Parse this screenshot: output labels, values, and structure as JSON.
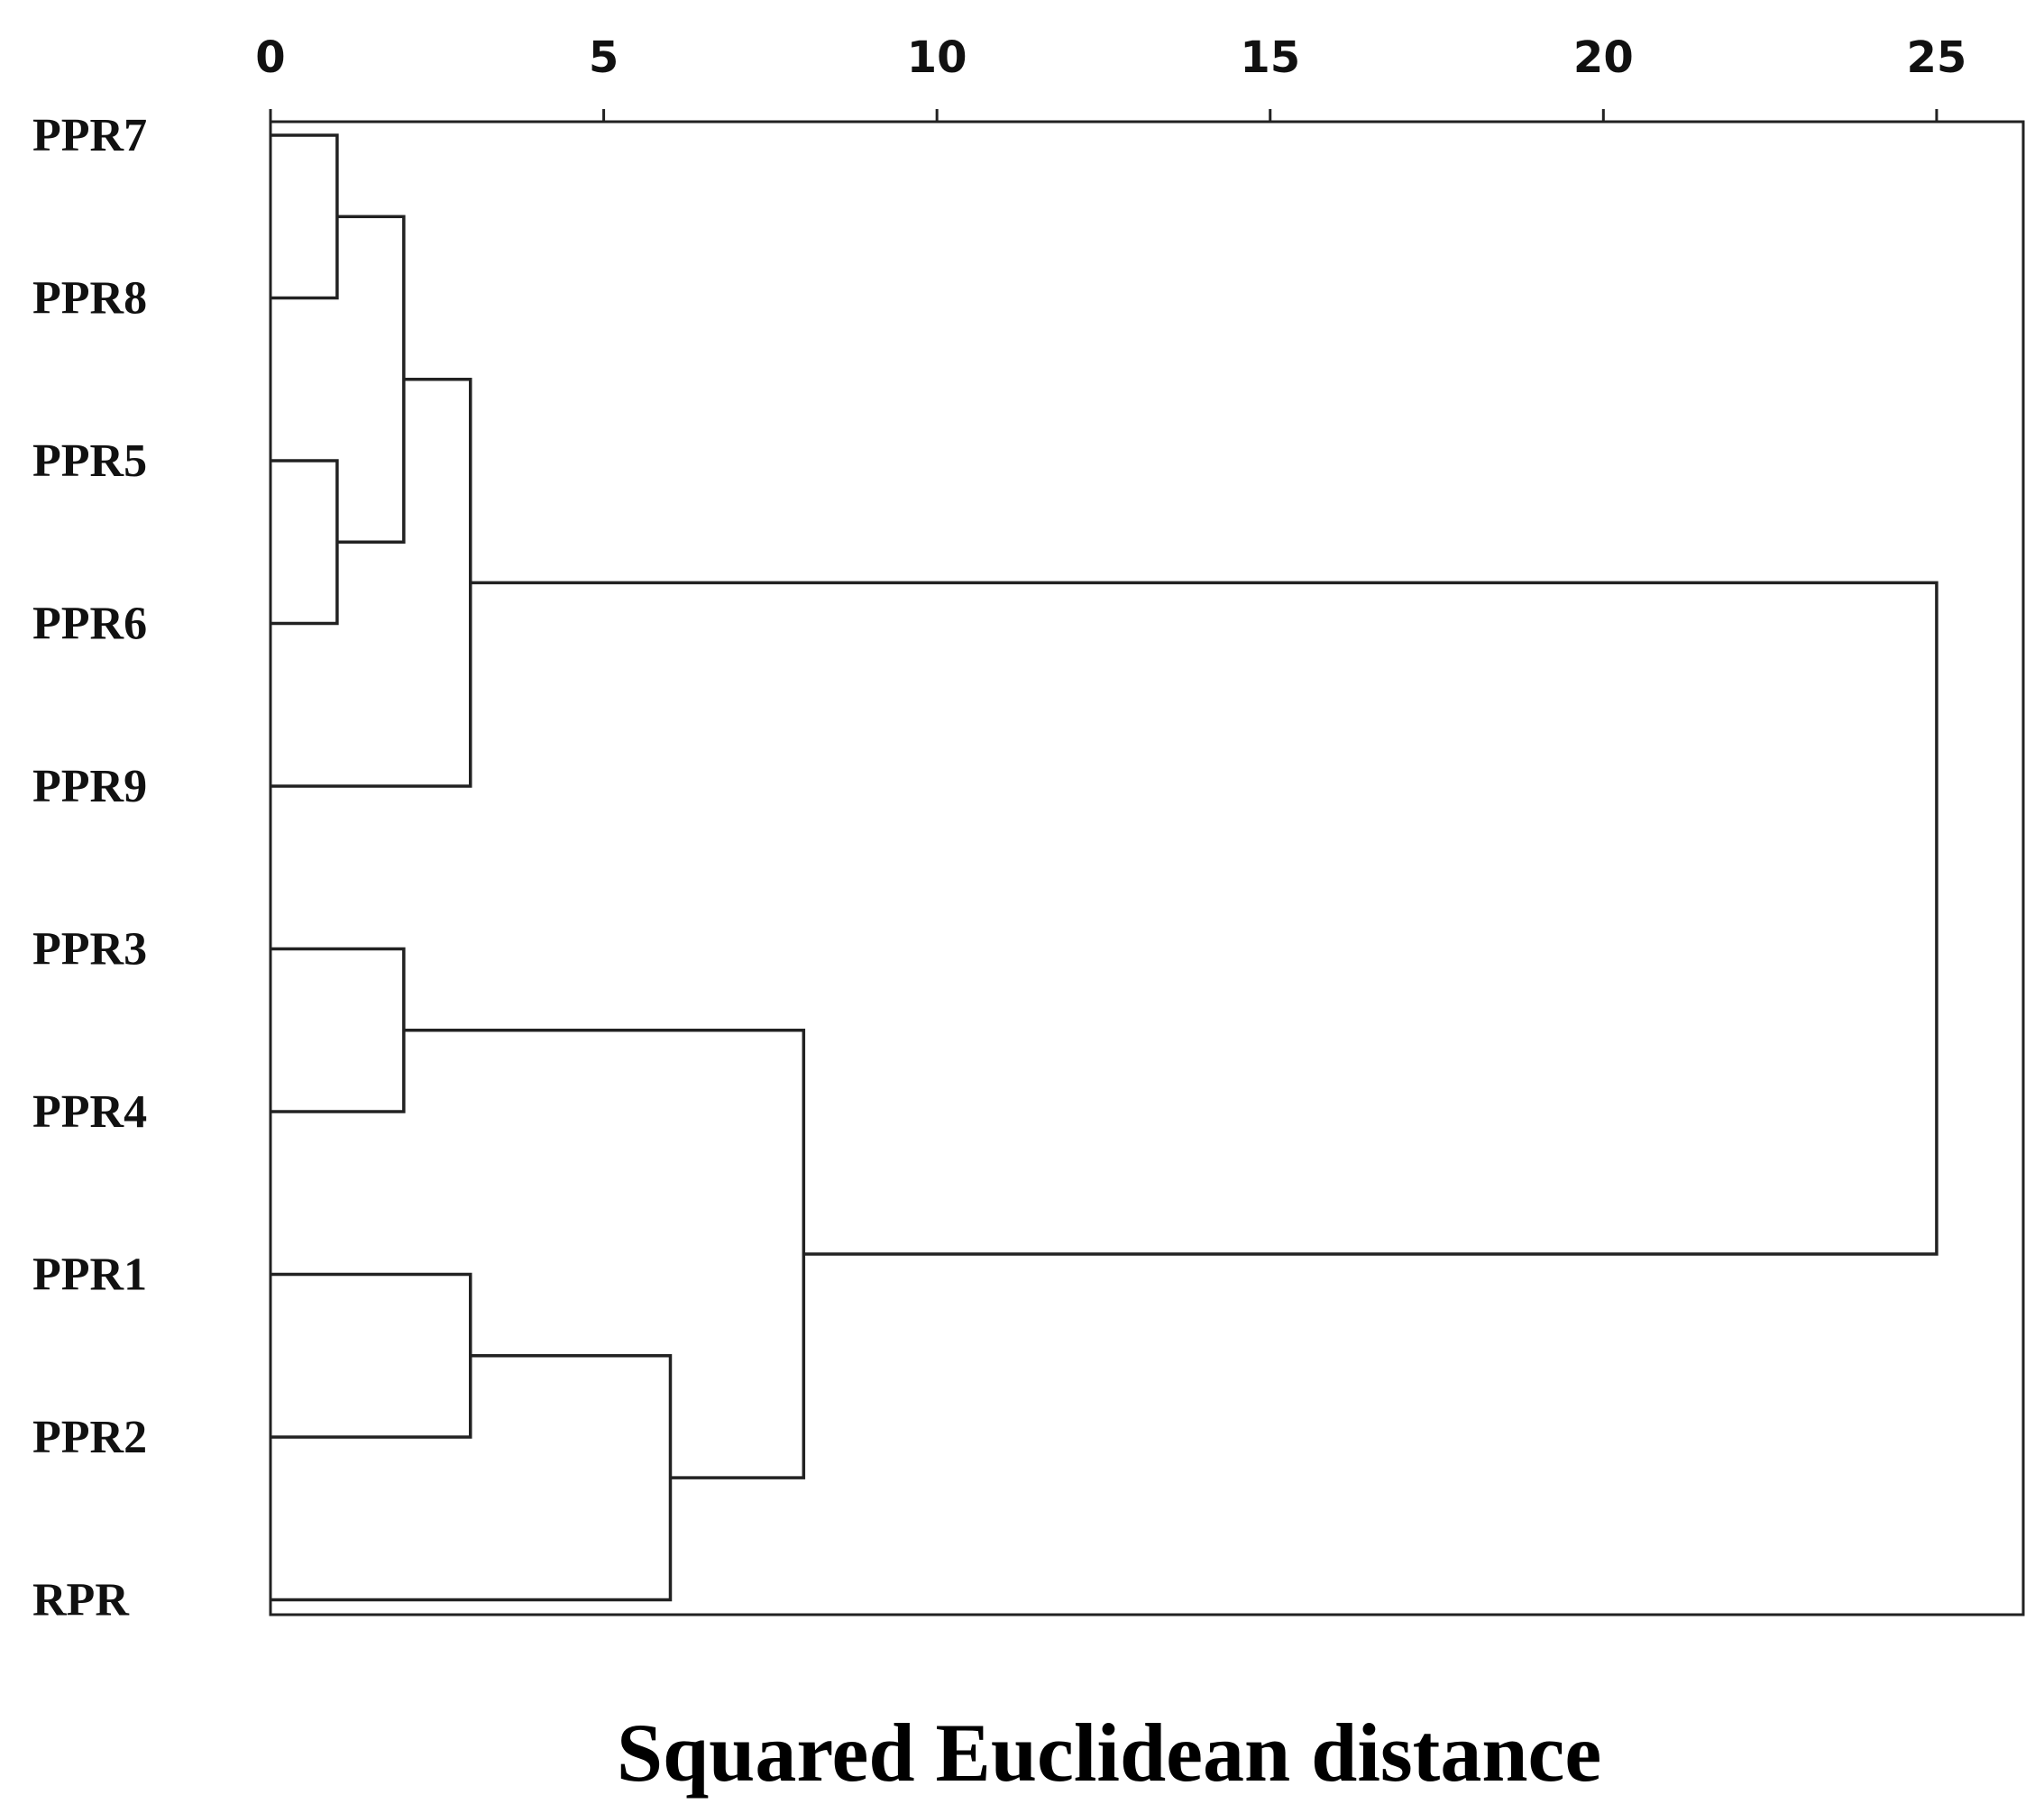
{
  "chart_data": {
    "type": "dendrogram",
    "xlabel": "Squared Euclidean distance",
    "xlim": [
      0,
      26.3
    ],
    "xticks": [
      0,
      5,
      10,
      15,
      20,
      25
    ],
    "xtick_labels": [
      "0",
      "5",
      "10",
      "15",
      "20",
      "25"
    ],
    "leaves": [
      "PPR7",
      "PPR8",
      "PPR5",
      "PPR6",
      "PPR9",
      "PPR3",
      "PPR4",
      "PPR1",
      "PPR2",
      "RPR"
    ],
    "merges": [
      {
        "id": "c1",
        "children": [
          "PPR7",
          "PPR8"
        ],
        "height": 1
      },
      {
        "id": "c2",
        "children": [
          "PPR5",
          "PPR6"
        ],
        "height": 1
      },
      {
        "id": "c3",
        "children": [
          "c1",
          "c2"
        ],
        "height": 2
      },
      {
        "id": "c4",
        "children": [
          "c3",
          "PPR9"
        ],
        "height": 3
      },
      {
        "id": "c5",
        "children": [
          "PPR3",
          "PPR4"
        ],
        "height": 2
      },
      {
        "id": "c6",
        "children": [
          "PPR1",
          "PPR2"
        ],
        "height": 3
      },
      {
        "id": "c7",
        "children": [
          "c6",
          "RPR"
        ],
        "height": 6
      },
      {
        "id": "c8",
        "children": [
          "c5",
          "c7"
        ],
        "height": 8
      },
      {
        "id": "c9",
        "children": [
          "c4",
          "c8"
        ],
        "height": 25
      }
    ],
    "grid": false,
    "legend": "none"
  }
}
